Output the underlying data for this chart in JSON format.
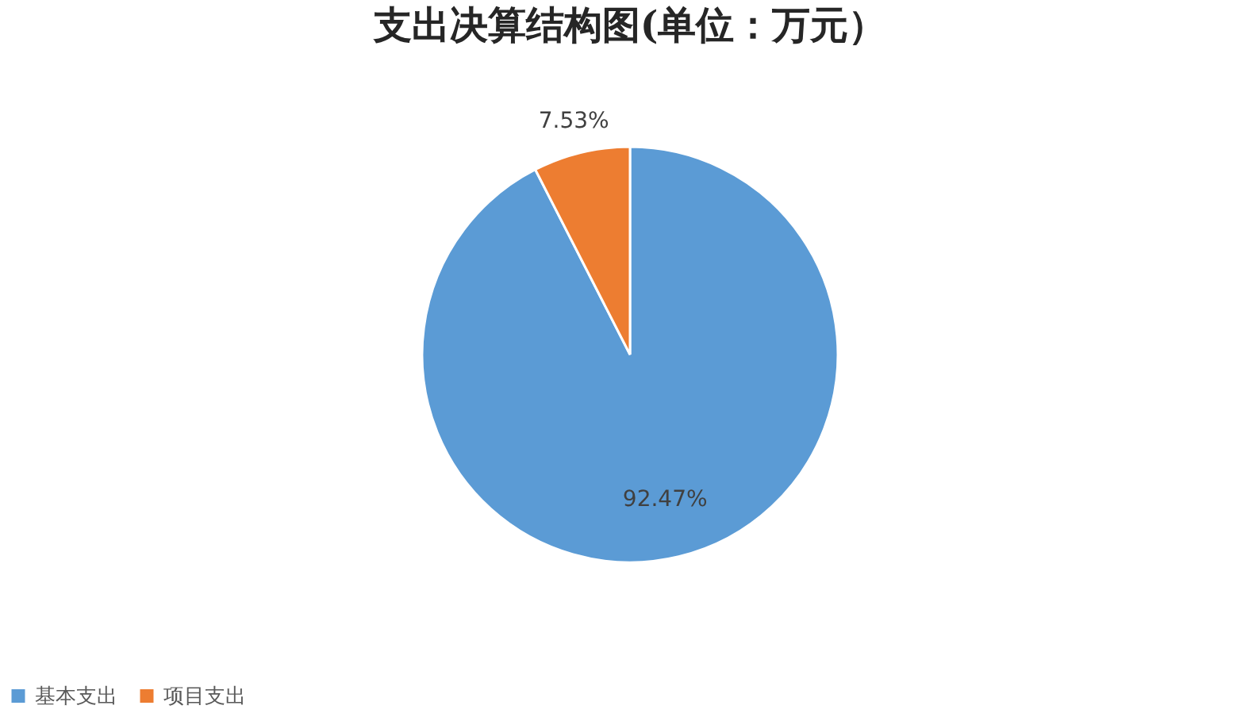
{
  "chart_data": {
    "type": "pie",
    "title": "支出决算结构图(单位：万元）",
    "categories": [
      "基本支出",
      "项目支出"
    ],
    "values": [
      92.47,
      7.53
    ],
    "colors": [
      "#5b9bd5",
      "#ed7d31"
    ],
    "value_labels": [
      "92.47%",
      "7.53%"
    ],
    "legend": "bottom"
  }
}
